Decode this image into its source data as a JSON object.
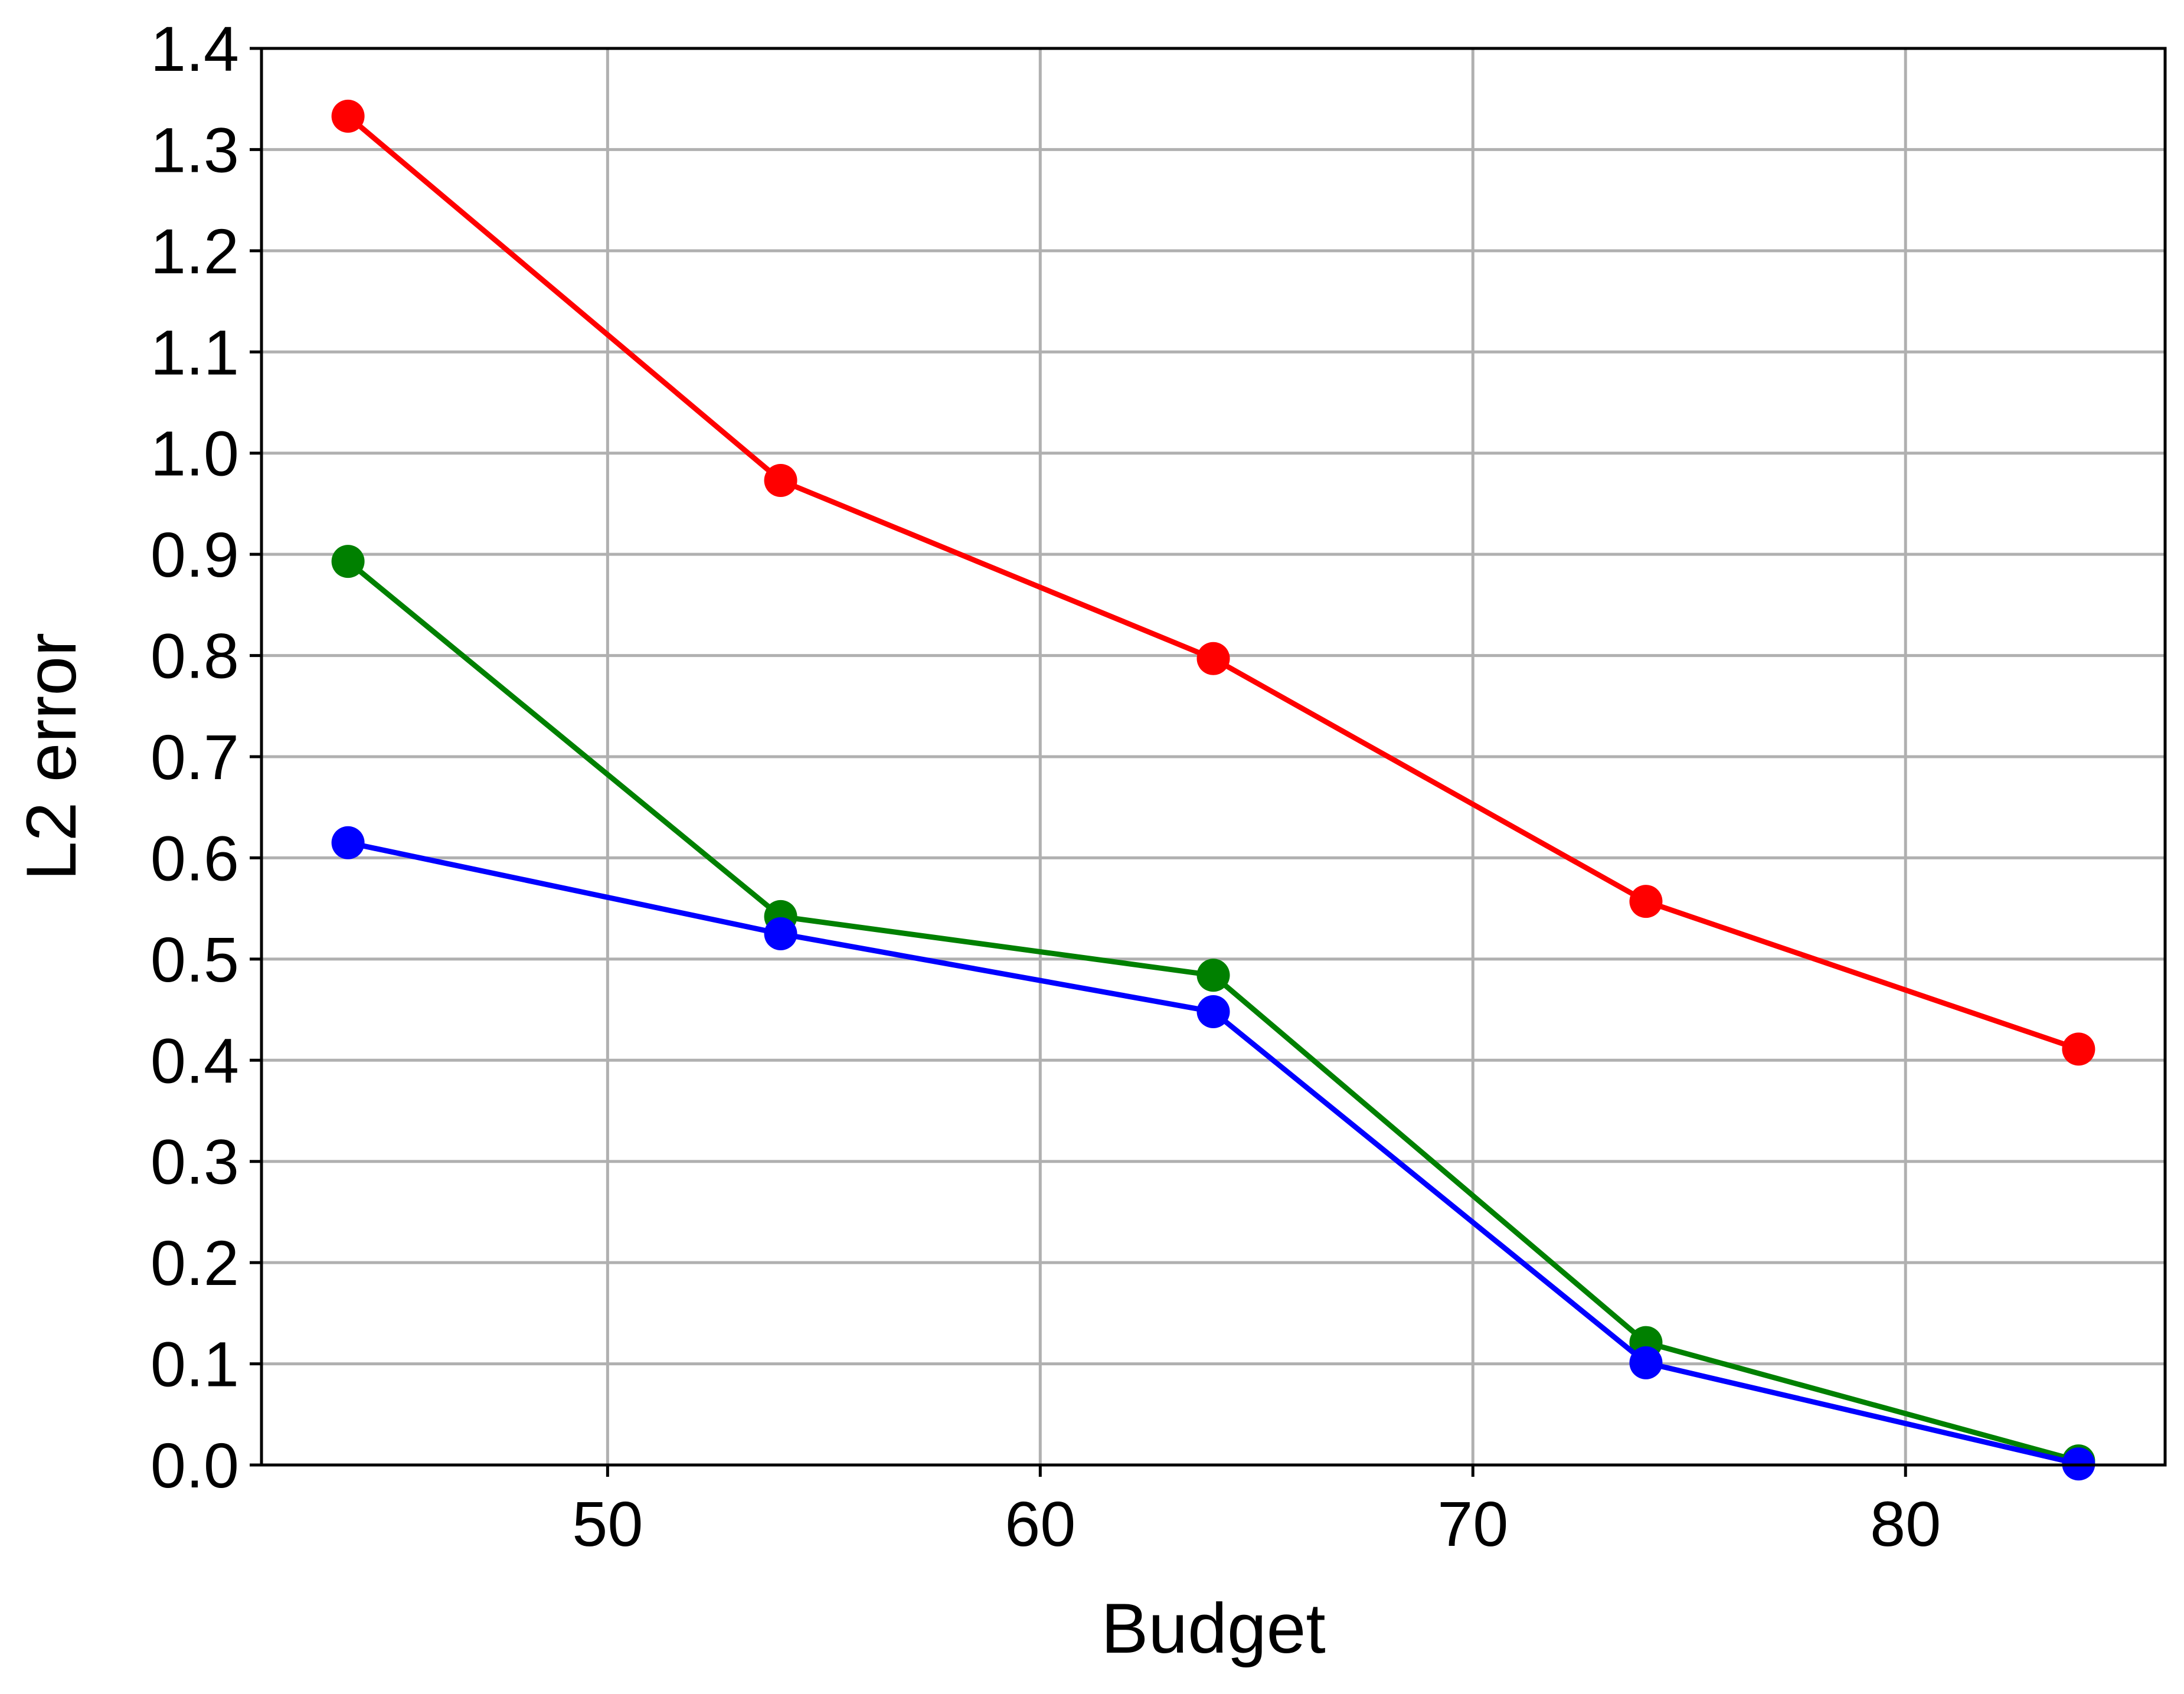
{
  "chart_data": {
    "type": "line",
    "title": "",
    "xlabel": "Budget",
    "ylabel": "L2 error",
    "xlim": [
      42,
      86
    ],
    "ylim": [
      0.0,
      1.4
    ],
    "xticks": [
      50,
      60,
      70,
      80
    ],
    "xtick_labels": [
      "50",
      "60",
      "70",
      "80"
    ],
    "yticks": [
      0.0,
      0.1,
      0.2,
      0.3,
      0.4,
      0.5,
      0.6,
      0.7,
      0.8,
      0.9,
      1.0,
      1.1,
      1.2,
      1.3,
      1.4
    ],
    "ytick_labels": [
      "0.0",
      "0.1",
      "0.2",
      "0.3",
      "0.4",
      "0.5",
      "0.6",
      "0.7",
      "0.8",
      "0.9",
      "1.0",
      "1.1",
      "1.2",
      "1.3",
      "1.4"
    ],
    "grid": true,
    "legend": "none",
    "x": [
      44,
      54,
      64,
      74,
      84
    ],
    "series": [
      {
        "color": "#ff0000",
        "marker": "circle",
        "values": [
          1.333,
          0.973,
          0.797,
          0.557,
          0.411
        ]
      },
      {
        "color": "#008000",
        "marker": "circle",
        "values": [
          0.893,
          0.542,
          0.484,
          0.121,
          0.004
        ]
      },
      {
        "color": "#0000ff",
        "marker": "circle",
        "values": [
          0.615,
          0.525,
          0.448,
          0.101,
          0.001
        ]
      }
    ]
  }
}
